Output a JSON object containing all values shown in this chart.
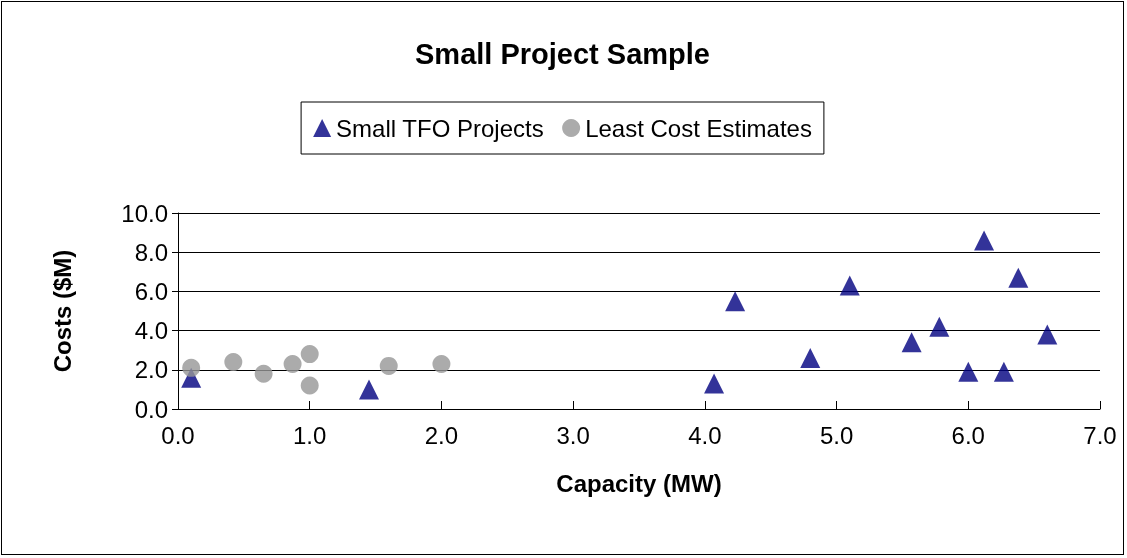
{
  "chart_data": {
    "type": "scatter",
    "title": "Small Project Sample",
    "xlabel": "Capacity (MW)",
    "ylabel": "Costs ($M)",
    "xlim": [
      0,
      7
    ],
    "xticks": [
      {
        "value": 0,
        "label": "0.0"
      },
      {
        "value": 1,
        "label": "1.0"
      },
      {
        "value": 2,
        "label": "2.0"
      },
      {
        "value": 3,
        "label": "3.0"
      },
      {
        "value": 4,
        "label": "4.0"
      },
      {
        "value": 5,
        "label": "5.0"
      },
      {
        "value": 6,
        "label": "6.0"
      },
      {
        "value": 7,
        "label": "7.0"
      }
    ],
    "ylim": [
      0,
      10
    ],
    "yticks": [
      {
        "value": 0,
        "label": "0.0"
      },
      {
        "value": 2,
        "label": "2.0"
      },
      {
        "value": 4,
        "label": "4.0"
      },
      {
        "value": 6,
        "label": "6.0"
      },
      {
        "value": 8,
        "label": "8.0"
      },
      {
        "value": 10,
        "label": "10.0"
      }
    ],
    "grid": "y",
    "legend": "top",
    "series": [
      {
        "name": "Small TFO Projects",
        "color": "#000080",
        "marker": "triangle",
        "x": [
          0.1,
          1.45,
          4.07,
          4.23,
          4.8,
          5.1,
          5.57,
          5.78,
          6.0,
          6.12,
          6.27,
          6.38,
          6.6
        ],
        "values": [
          1.6,
          1.0,
          1.3,
          5.5,
          2.6,
          6.3,
          3.4,
          4.2,
          1.9,
          8.6,
          1.9,
          6.7,
          3.8
        ]
      },
      {
        "name": "Least Cost Estimates",
        "color": "#969696",
        "marker": "circle",
        "x": [
          0.1,
          0.42,
          0.65,
          0.87,
          1.0,
          1.0,
          1.6,
          2.0
        ],
        "values": [
          2.1,
          2.4,
          1.8,
          2.3,
          2.8,
          1.2,
          2.2,
          2.3
        ]
      }
    ]
  }
}
